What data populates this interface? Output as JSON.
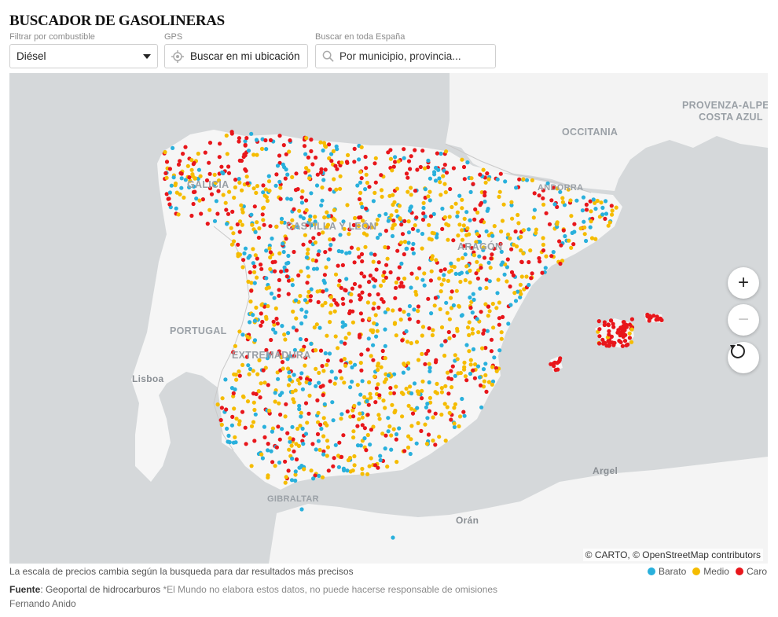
{
  "title": "BUSCADOR DE GASOLINERAS",
  "controls": {
    "fuel_label": "Filtrar por combustible",
    "fuel_value": "Diésel",
    "gps_label": "GPS",
    "gps_button": "Buscar en mi ubicación",
    "search_label": "Buscar en toda España",
    "search_placeholder": "Por municipio, provincia..."
  },
  "map": {
    "labels": {
      "provenza": "PROVENZA-ALPES-\nCOSTA AZUL",
      "occitania": "OCCITANIA",
      "andorra": "ANDORRA",
      "galicia": "GALICIA",
      "castilla_leon": "CASTILLA Y LEÓN",
      "aragon": "ARAGÓN",
      "portugal": "PORTUGAL",
      "lisboa": "Lisboa",
      "extremadura": "EXTREMADURA",
      "gibraltar": "GIBRALTAR",
      "argel": "Argel",
      "oran": "Orán"
    },
    "zoom_in": "+",
    "zoom_out": "−",
    "attribution": "© CARTO, © OpenStreetMap contributors"
  },
  "note": "La escala de precios cambia según la busqueda para dar resultados más precisos",
  "legend": [
    {
      "label": "Barato",
      "color": "#29b0dc"
    },
    {
      "label": "Medio",
      "color": "#f5bc00"
    },
    {
      "label": "Caro",
      "color": "#e8161b"
    }
  ],
  "source": {
    "label": "Fuente",
    "text": ": Geoportal de hidrocarburos",
    "disclaimer": " *El Mundo no elabora estos datos, no puede hacerse responsable de omisiones"
  },
  "author": "Fernando Anido",
  "colors": {
    "cheap": "#29b0dc",
    "medium": "#f5bc00",
    "expensive": "#e8161b"
  }
}
